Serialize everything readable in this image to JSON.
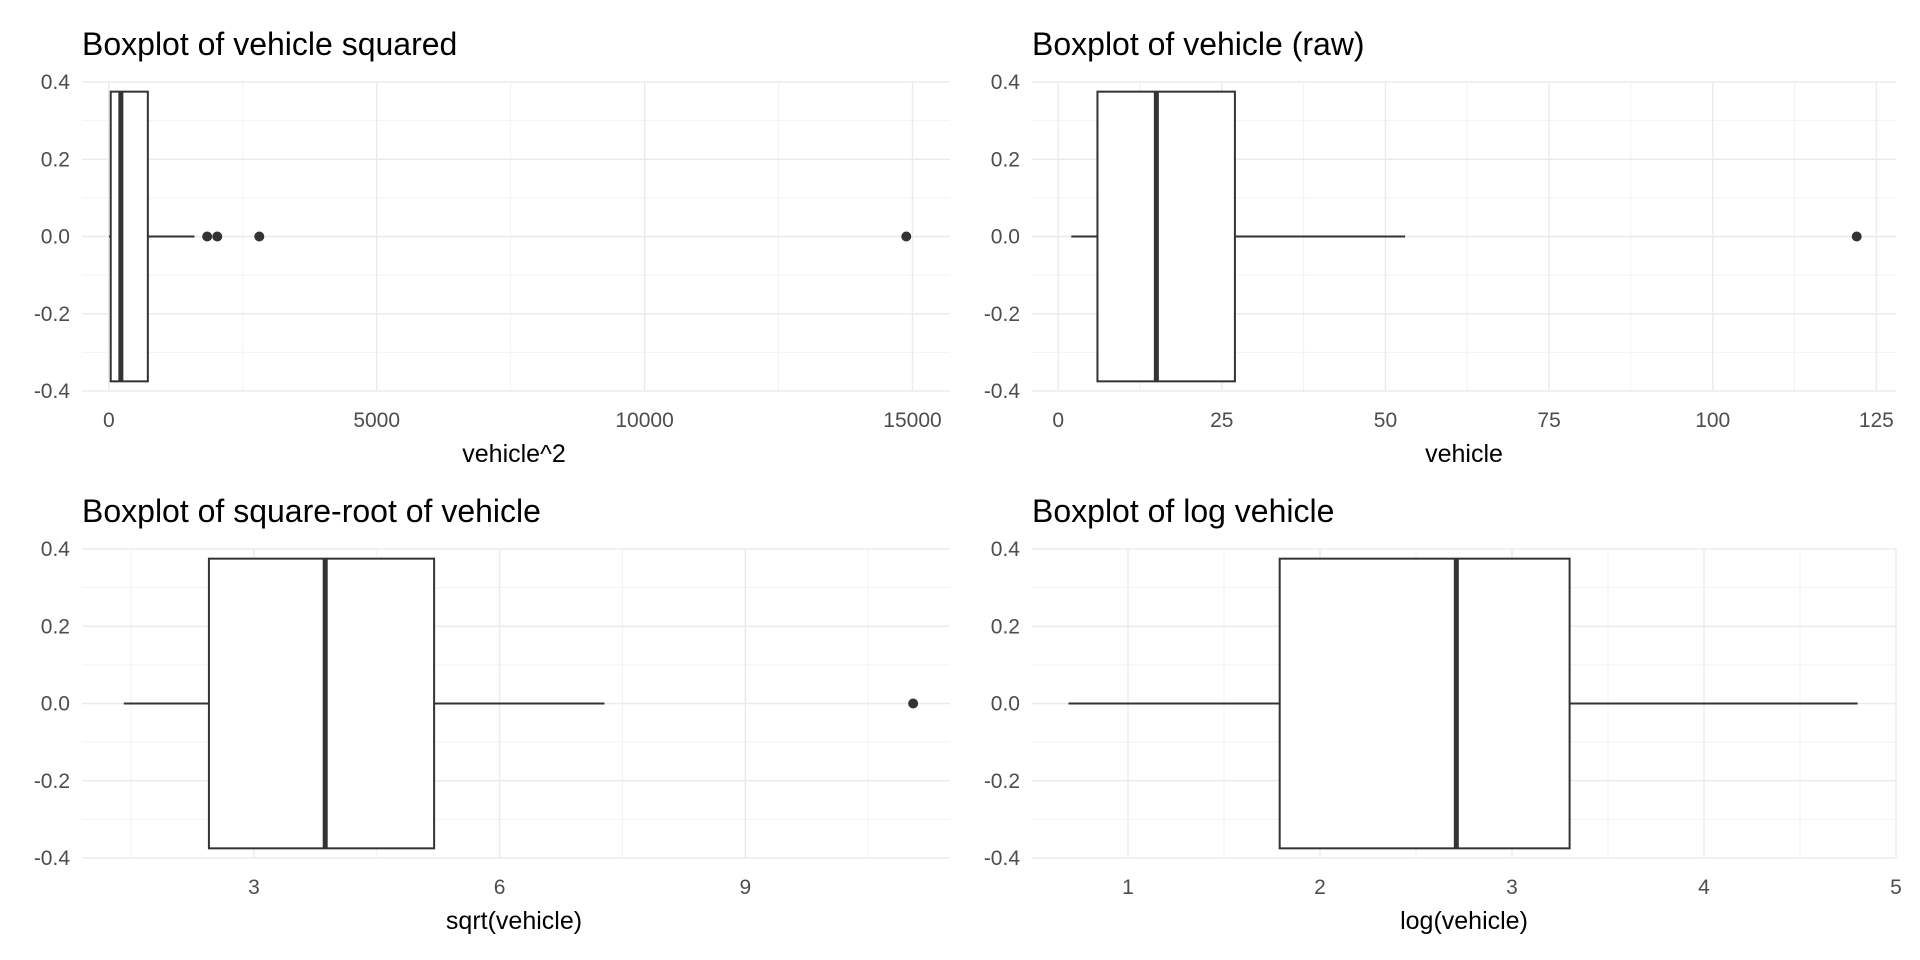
{
  "chart_data": [
    {
      "type": "boxplot",
      "title": "Boxplot of vehicle squared",
      "xlabel": "vehicle^2",
      "ylabel": "",
      "xlim": [
        -500,
        15700
      ],
      "ylim": [
        -0.4,
        0.4
      ],
      "x_ticks": [
        0,
        5000,
        10000,
        15000
      ],
      "x_tick_labels": [
        "0",
        "5000",
        "10000",
        "15000"
      ],
      "y_ticks": [
        -0.4,
        -0.2,
        0.0,
        0.2,
        0.4
      ],
      "y_tick_labels": [
        "-0.4",
        "-0.2",
        "0.0",
        "0.2",
        "0.4"
      ],
      "grid": true,
      "box": {
        "whisker_low": 4,
        "q1": 36,
        "median": 225,
        "q3": 729,
        "whisker_high": 1600,
        "outliers": [
          1836,
          2025,
          2809,
          14884
        ],
        "y_low": -0.375,
        "y_high": 0.375
      }
    },
    {
      "type": "boxplot",
      "title": "Boxplot of vehicle (raw)",
      "xlabel": "vehicle",
      "ylabel": "",
      "xlim": [
        -4,
        128
      ],
      "ylim": [
        -0.4,
        0.4
      ],
      "x_ticks": [
        0,
        25,
        50,
        75,
        100,
        125
      ],
      "x_tick_labels": [
        "0",
        "25",
        "50",
        "75",
        "100",
        "125"
      ],
      "y_ticks": [
        -0.4,
        -0.2,
        0.0,
        0.2,
        0.4
      ],
      "y_tick_labels": [
        "-0.4",
        "-0.2",
        "0.0",
        "0.2",
        "0.4"
      ],
      "grid": true,
      "box": {
        "whisker_low": 2,
        "q1": 6,
        "median": 15,
        "q3": 27,
        "whisker_high": 53,
        "outliers": [
          122
        ],
        "y_low": -0.375,
        "y_high": 0.375
      }
    },
    {
      "type": "boxplot",
      "title": "Boxplot of square-root of vehicle",
      "xlabel": "sqrt(vehicle)",
      "ylabel": "",
      "xlim": [
        0.9,
        11.5
      ],
      "ylim": [
        -0.4,
        0.4
      ],
      "x_ticks": [
        3,
        6,
        9
      ],
      "x_tick_labels": [
        "3",
        "6",
        "9"
      ],
      "y_ticks": [
        -0.4,
        -0.2,
        0.0,
        0.2,
        0.4
      ],
      "y_tick_labels": [
        "-0.4",
        "-0.2",
        "0.0",
        "0.2",
        "0.4"
      ],
      "grid": true,
      "box": {
        "whisker_low": 1.41,
        "q1": 2.45,
        "median": 3.87,
        "q3": 5.2,
        "whisker_high": 7.28,
        "outliers": [
          11.05
        ],
        "y_low": -0.375,
        "y_high": 0.375
      }
    },
    {
      "type": "boxplot",
      "title": "Boxplot of log vehicle",
      "xlabel": "log(vehicle)",
      "ylabel": "",
      "xlim": [
        0.5,
        5.0
      ],
      "ylim": [
        -0.4,
        0.4
      ],
      "x_ticks": [
        1,
        2,
        3,
        4,
        5
      ],
      "x_tick_labels": [
        "1",
        "2",
        "3",
        "4",
        "5"
      ],
      "y_ticks": [
        -0.4,
        -0.2,
        0.0,
        0.2,
        0.4
      ],
      "y_tick_labels": [
        "-0.4",
        "-0.2",
        "0.0",
        "0.2",
        "0.4"
      ],
      "grid": true,
      "box": {
        "whisker_low": 0.69,
        "q1": 1.79,
        "median": 2.71,
        "q3": 3.3,
        "whisker_high": 4.8,
        "outliers": [],
        "y_low": -0.375,
        "y_high": 0.375
      }
    }
  ]
}
